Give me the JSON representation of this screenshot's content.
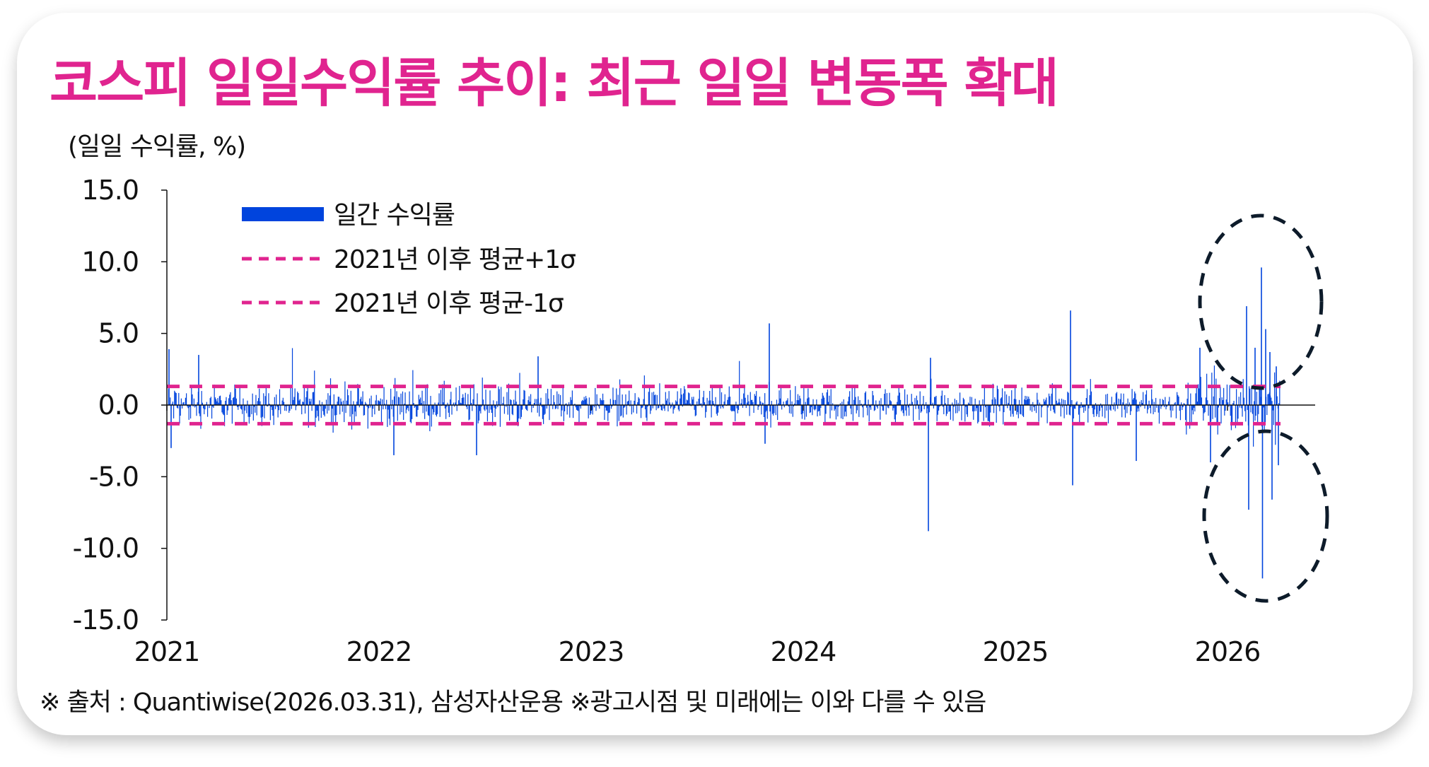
{
  "title": "코스피 일일수익률 추이: 최근 일일 변동폭 확대",
  "footer": "※ 출처 : Quantiwise(2026.03.31), 삼성자산운용 ※광고시점 및 미래에는 이와 다를 수 있음",
  "colors": {
    "title": "#e0248f",
    "bars": "#0044dd",
    "sigma": "#e0248f",
    "highlight": "#0d1b2a"
  },
  "chart_data": {
    "type": "bar",
    "title": "코스피 일일수익률 추이: 최근 일일 변동폭 확대",
    "ylabel": "(일일 수익률, %)",
    "xlabel": "",
    "ylim": [
      -15,
      15
    ],
    "yticks": [
      "15.0",
      "10.0",
      "5.0",
      "0.0",
      "-5.0",
      "-10.0",
      "-15.0"
    ],
    "ytick_values": [
      15,
      10,
      5,
      0,
      -5,
      -10,
      -15
    ],
    "xticks": [
      "2021",
      "2022",
      "2023",
      "2024",
      "2025",
      "2026"
    ],
    "xtick_values": [
      2021,
      2022,
      2023,
      2024,
      2025,
      2026
    ],
    "x_range": [
      2021,
      2026.25
    ],
    "legend": {
      "placement": "top-left",
      "entries": [
        "일간 수익률",
        "2021년 이후 평균+1σ",
        "2021년 이후 평균-1σ"
      ]
    },
    "series": [
      {
        "name": "일간 수익률",
        "kind": "bar",
        "typical_abs_return": 0.9,
        "notable_points": [
          {
            "x": 2021.01,
            "y": 3.9
          },
          {
            "x": 2021.02,
            "y": -3.0
          },
          {
            "x": 2021.15,
            "y": 3.5
          },
          {
            "x": 2022.07,
            "y": -3.5
          },
          {
            "x": 2022.46,
            "y": -3.5
          },
          {
            "x": 2022.75,
            "y": 3.4
          },
          {
            "x": 2023.84,
            "y": 5.7
          },
          {
            "x": 2023.82,
            "y": -2.7
          },
          {
            "x": 2024.59,
            "y": -8.8
          },
          {
            "x": 2024.6,
            "y": 3.3
          },
          {
            "x": 2025.26,
            "y": 6.6
          },
          {
            "x": 2025.27,
            "y": -5.6
          },
          {
            "x": 2025.57,
            "y": -3.9
          },
          {
            "x": 2025.87,
            "y": 4.0
          },
          {
            "x": 2025.92,
            "y": -4.0
          },
          {
            "x": 2026.09,
            "y": 6.9
          },
          {
            "x": 2026.1,
            "y": -7.3
          },
          {
            "x": 2026.13,
            "y": 4.0
          },
          {
            "x": 2026.16,
            "y": 9.6
          },
          {
            "x": 2026.165,
            "y": -12.1
          },
          {
            "x": 2026.18,
            "y": 5.3
          },
          {
            "x": 2026.2,
            "y": 3.7
          },
          {
            "x": 2026.21,
            "y": -6.6
          },
          {
            "x": 2026.23,
            "y": 2.7
          },
          {
            "x": 2026.24,
            "y": -4.2
          }
        ]
      },
      {
        "name": "2021년 이후 평균+1σ",
        "kind": "hline",
        "value": 1.3
      },
      {
        "name": "2021년 이후 평균-1σ",
        "kind": "hline",
        "value": -1.3
      }
    ],
    "annotations": [
      {
        "shape": "dashed-ellipse",
        "region": "2026 positive spikes"
      },
      {
        "shape": "dashed-ellipse",
        "region": "2026 negative spikes"
      }
    ],
    "grid": false
  }
}
